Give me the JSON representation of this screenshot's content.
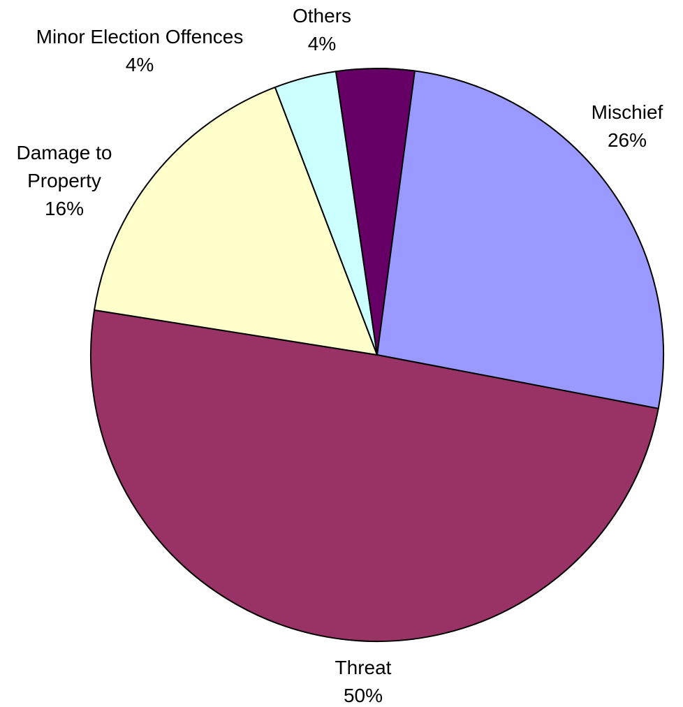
{
  "chart_data": {
    "type": "pie",
    "title": "",
    "slices": [
      {
        "name": "Mischief",
        "percent_label": "26%",
        "value": 26,
        "color": "#9999FF",
        "label_lines": [
          "Mischief",
          "26%"
        ]
      },
      {
        "name": "Threat",
        "percent_label": "50%",
        "value": 50,
        "color": "#993366",
        "label_lines": [
          "Threat",
          "50%"
        ]
      },
      {
        "name": "Damage to Property",
        "percent_label": "16%",
        "value": 16,
        "color": "#FFFFCC",
        "label_lines": [
          "Damage to",
          "Property",
          "16%"
        ]
      },
      {
        "name": "Minor Election Offences",
        "percent_label": "4%",
        "value": 4,
        "color": "#CCFFFF",
        "label_lines": [
          "Minor Election Offences",
          "4%"
        ]
      },
      {
        "name": "Others",
        "percent_label": "4%",
        "value": 4,
        "color": "#660066",
        "label_lines": [
          "Others",
          "4%"
        ]
      }
    ],
    "start_angle": "12 o'clock",
    "direction": "clockwise",
    "legend": "none",
    "data_labels": "outside"
  }
}
